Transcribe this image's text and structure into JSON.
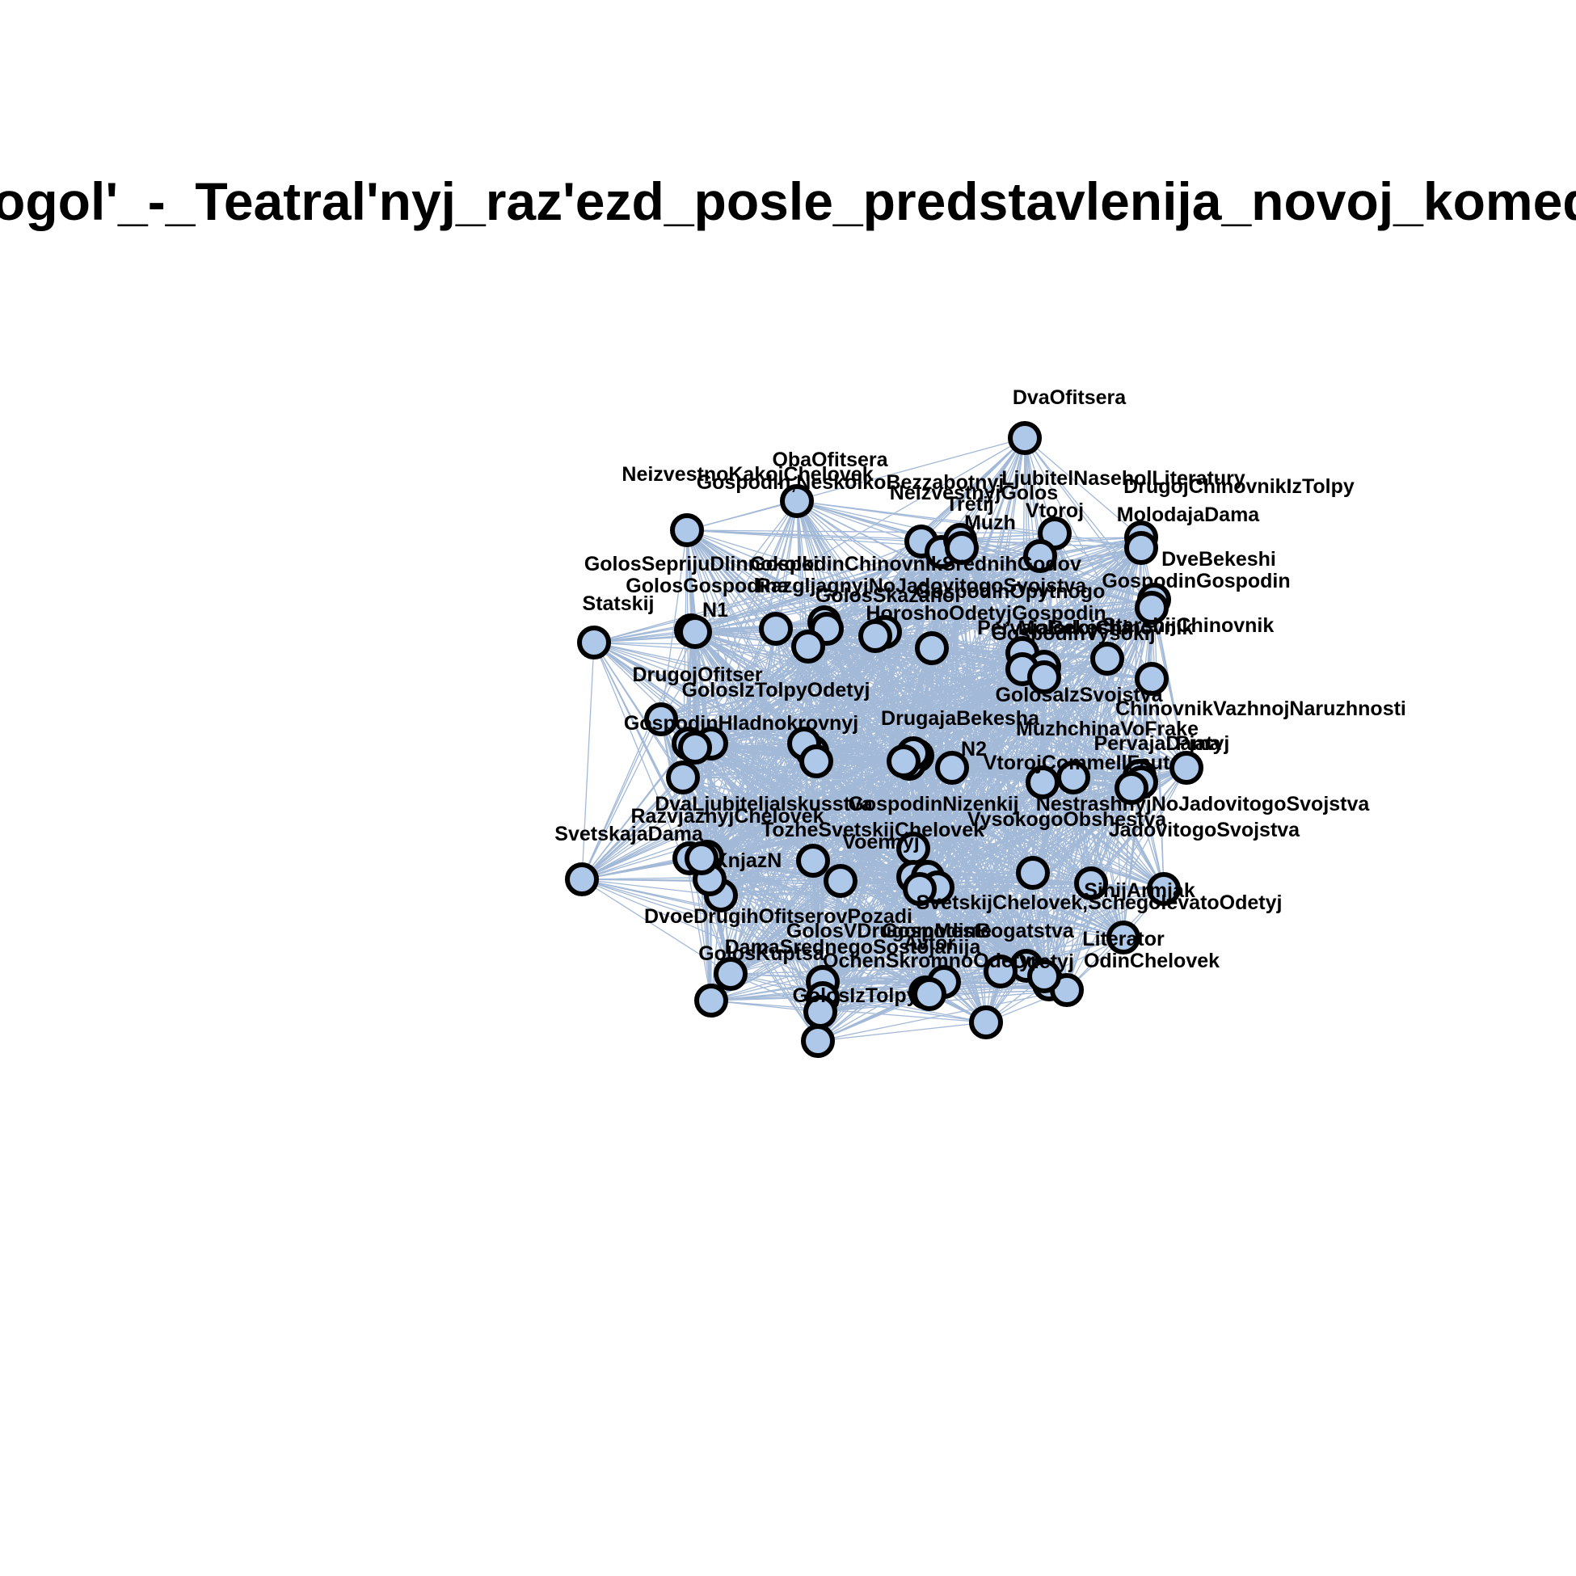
{
  "title": "Gogol'_-_Teatral'nyj_raz'ezd_posle_predstavlenija_novoj_komedii",
  "colors": {
    "node_fill": "#aec8ea",
    "node_stroke": "#000000",
    "edge": "#a3b9d8",
    "background": "#ffffff"
  },
  "nodes": [
    {
      "id": "DvaOfitsera",
      "label": "DvaOfitsera"
    },
    {
      "id": "ObaOfitsera",
      "label": "ObaOfitsera"
    },
    {
      "id": "NeizvestnoKakojChelovek",
      "label": "NeizvestnoKakojChelovek"
    },
    {
      "id": "GospodinNeskolkoBezz",
      "label": "Gospodin,NeskolkoBezzabotnyj"
    },
    {
      "id": "NeizvestnyjGolos",
      "label": "NeizvestnyjGolos"
    },
    {
      "id": "LjubitelNaseholLiteratury",
      "label": "LjubitelNaseholLiteratury"
    },
    {
      "id": "DrugojChinovnikIzTolpy",
      "label": "DrugojChinovnikIzTolpy"
    },
    {
      "id": "Tretij",
      "label": "Tretij"
    },
    {
      "id": "Muzh",
      "label": "Muzh"
    },
    {
      "id": "Vtoroj",
      "label": "Vtoroj"
    },
    {
      "id": "MolodajaDama",
      "label": "MolodajaDama"
    },
    {
      "id": "DveBekeshi",
      "label": "DveBekeshi"
    },
    {
      "id": "GospodinGospodin",
      "label": "GospodinGospodin"
    },
    {
      "id": "GolosSeprijuDlinnokolki",
      "label": "GolosSeprijuDlinnokolki"
    },
    {
      "id": "GospodinChinovnik",
      "label": "GospodinChinovnikSrednihGodov"
    },
    {
      "id": "GolosGospodina",
      "label": "GolosGospodina"
    },
    {
      "id": "Razgljagnyj",
      "label": "RazgljagnyjNoJadovitogoSvojstva"
    },
    {
      "id": "GolosSkazano",
      "label": "GolosSkazano"
    },
    {
      "id": "Statskij",
      "label": "Statskij"
    },
    {
      "id": "N1",
      "label": "N1"
    },
    {
      "id": "HoroshoOdetyj",
      "label": "HoroshoOdetyjGospodin"
    },
    {
      "id": "GospodinOpytnogo",
      "label": "GospodinOpytnogo"
    },
    {
      "id": "PervajaBekesha",
      "label": "PervajaBekesha"
    },
    {
      "id": "StarshijChinovnik",
      "label": "StarshijChinovnik"
    },
    {
      "id": "MolodojChinovnik",
      "label": "MolodojChinovnik"
    },
    {
      "id": "GospodinVysokij",
      "label": "GospodinVysokij"
    },
    {
      "id": "DrugojOfitser",
      "label": "DrugojOfitser"
    },
    {
      "id": "GolosIzTolpyOdetyj",
      "label": "GolosIzTolpyOdetyj"
    },
    {
      "id": "GolosaIzSvojstva",
      "label": "GolosaIzSvojstva"
    },
    {
      "id": "ChinovnikVazhnoj",
      "label": "ChinovnikVazhnojNaruzhnosti"
    },
    {
      "id": "GospodinHladnokrovnyj",
      "label": "GospodinHladnokrovnyj"
    },
    {
      "id": "DrugajaBekesha",
      "label": "DrugajaBekesha"
    },
    {
      "id": "MuzhchinaVoFrake",
      "label": "MuzhchinaVoFrake"
    },
    {
      "id": "PervajaDama",
      "label": "PervajaDama"
    },
    {
      "id": "Pjatyj",
      "label": "Pjatyj"
    },
    {
      "id": "N2",
      "label": "N2"
    },
    {
      "id": "VtorojCommeIlFaut",
      "label": "VtorojCommeIlFaut"
    },
    {
      "id": "DvaLjubitelja",
      "label": "DvaLjubiteljaIskusstva"
    },
    {
      "id": "GospodinNizenkij",
      "label": "GospodinNizenkij"
    },
    {
      "id": "Nestrashnyj",
      "label": "NestrashnyjNoJadovitogoSvojstva"
    },
    {
      "id": "RazvjaznyjChelovek",
      "label": "RazvjaznyjChelovek"
    },
    {
      "id": "TozheSvetskijChelovek",
      "label": "TozheSvetskijChelovek"
    },
    {
      "id": "VysokogoObshestva",
      "label": "VysokogoObshestva"
    },
    {
      "id": "JadovitogoSvojstva",
      "label": "JadovitogoSvojstva"
    },
    {
      "id": "SvetskajaDama",
      "label": "SvetskajaDama"
    },
    {
      "id": "KnjazN",
      "label": "KnjazN"
    },
    {
      "id": "Voennyj",
      "label": "Voennyj"
    },
    {
      "id": "SinijArmjak",
      "label": "SinijArmjak"
    },
    {
      "id": "SvetskijChelovek",
      "label": "SvetskijChelovek,SchegolevatoOdetyj"
    },
    {
      "id": "DvoeDrugihOfitserov",
      "label": "DvoeDrugihOfitserovPozadi"
    },
    {
      "id": "GolosVDrugomMeste",
      "label": "GolosVDrugomMeste"
    },
    {
      "id": "GospodinBogatstva",
      "label": "GospodinBogatstva"
    },
    {
      "id": "Literator",
      "label": "Literator"
    },
    {
      "id": "DamaSrednegoSostojanija",
      "label": "DamaSrednegoSostojanija"
    },
    {
      "id": "Avtor",
      "label": "Avtor"
    },
    {
      "id": "Odetyj",
      "label": "Odetyj"
    },
    {
      "id": "GolosKuptsa",
      "label": "GolosKuptsa"
    },
    {
      "id": "OchenSkromno",
      "label": "OchenSkromnoOdetyj"
    },
    {
      "id": "OdinChelovek",
      "label": "OdinChelovek"
    },
    {
      "id": "GolosIzTolpy",
      "label": "GolosIzTolpy"
    },
    {
      "id": "h1",
      "label": ""
    },
    {
      "id": "h2",
      "label": ""
    },
    {
      "id": "h3",
      "label": ""
    },
    {
      "id": "h4",
      "label": ""
    },
    {
      "id": "h5",
      "label": ""
    },
    {
      "id": "h6",
      "label": ""
    },
    {
      "id": "h7",
      "label": ""
    },
    {
      "id": "h8",
      "label": ""
    },
    {
      "id": "h9",
      "label": ""
    },
    {
      "id": "h10",
      "label": ""
    },
    {
      "id": "h11",
      "label": ""
    },
    {
      "id": "h12",
      "label": ""
    },
    {
      "id": "h13",
      "label": ""
    },
    {
      "id": "h14",
      "label": ""
    },
    {
      "id": "h15",
      "label": ""
    },
    {
      "id": "h16",
      "label": ""
    },
    {
      "id": "h17",
      "label": ""
    },
    {
      "id": "h18",
      "label": ""
    },
    {
      "id": "h19",
      "label": ""
    },
    {
      "id": "h20",
      "label": ""
    }
  ]
}
